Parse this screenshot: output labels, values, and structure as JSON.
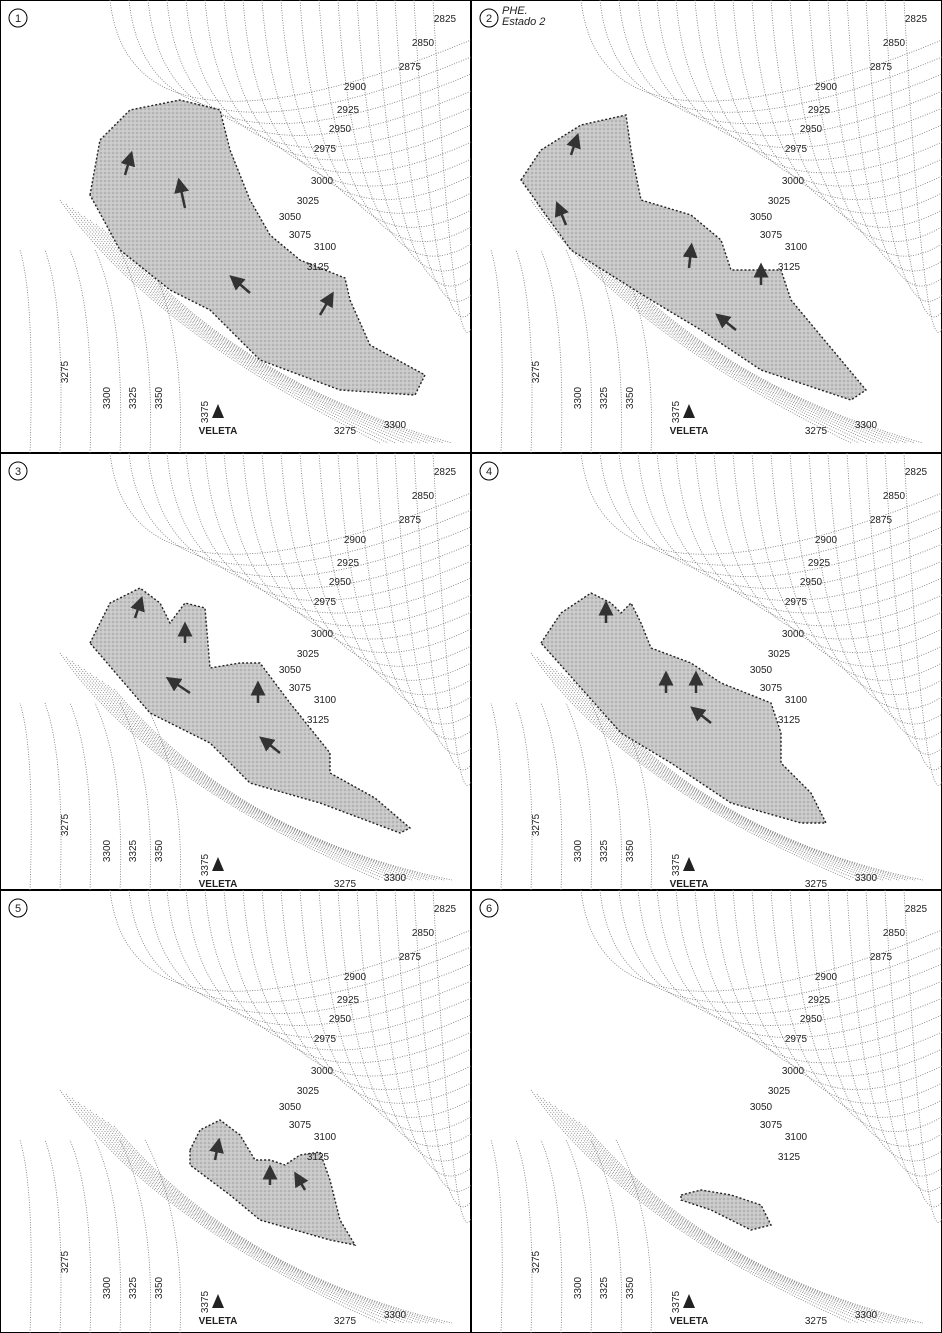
{
  "panels": [
    {
      "number": "1",
      "contours": [
        "2825",
        "2850",
        "2875",
        "2900",
        "2925",
        "2950",
        "2975",
        "3000",
        "3025",
        "3050",
        "3075",
        "3100",
        "3125",
        "3275",
        "3300",
        "3325",
        "3350",
        "3375",
        "3275",
        "3300"
      ],
      "peak": "VELETA"
    },
    {
      "number": "2",
      "caption": [
        "PHE.",
        "Estado 2"
      ],
      "contours": [
        "2825",
        "2850",
        "2875",
        "2900",
        "2925",
        "2950",
        "2975",
        "3000",
        "3025",
        "3050",
        "3075",
        "3100",
        "3125",
        "3275",
        "3300",
        "3325",
        "3350",
        "3375",
        "3275",
        "3300"
      ],
      "peak": "VELETA"
    },
    {
      "number": "3",
      "contours": [
        "2825",
        "2850",
        "2875",
        "2900",
        "2925",
        "2950",
        "2975",
        "3000",
        "3025",
        "3050",
        "3075",
        "3100",
        "3125",
        "3275",
        "3300",
        "3325",
        "3350",
        "3375",
        "3275",
        "3300"
      ],
      "peak": "VELETA"
    },
    {
      "number": "4",
      "contours": [
        "2825",
        "2850",
        "2875",
        "2900",
        "2925",
        "2950",
        "2975",
        "3000",
        "3025",
        "3050",
        "3075",
        "3100",
        "3125",
        "3275",
        "3300",
        "3325",
        "3350",
        "3375",
        "3275",
        "3300"
      ],
      "peak": "VELETA"
    },
    {
      "number": "5",
      "contours": [
        "2825",
        "2850",
        "2875",
        "2900",
        "2925",
        "2950",
        "2975",
        "3000",
        "3025",
        "3050",
        "3075",
        "3100",
        "3125",
        "3275",
        "3300",
        "3325",
        "3350",
        "3375",
        "3275",
        "3300"
      ],
      "peak": "VELETA"
    },
    {
      "number": "6",
      "contours": [
        "2825",
        "2850",
        "2875",
        "2900",
        "2925",
        "2950",
        "2975",
        "3000",
        "3025",
        "3050",
        "3075",
        "3100",
        "3125",
        "3275",
        "3300",
        "3325",
        "3350",
        "3375",
        "3275",
        "3300"
      ],
      "peak": "VELETA"
    }
  ]
}
